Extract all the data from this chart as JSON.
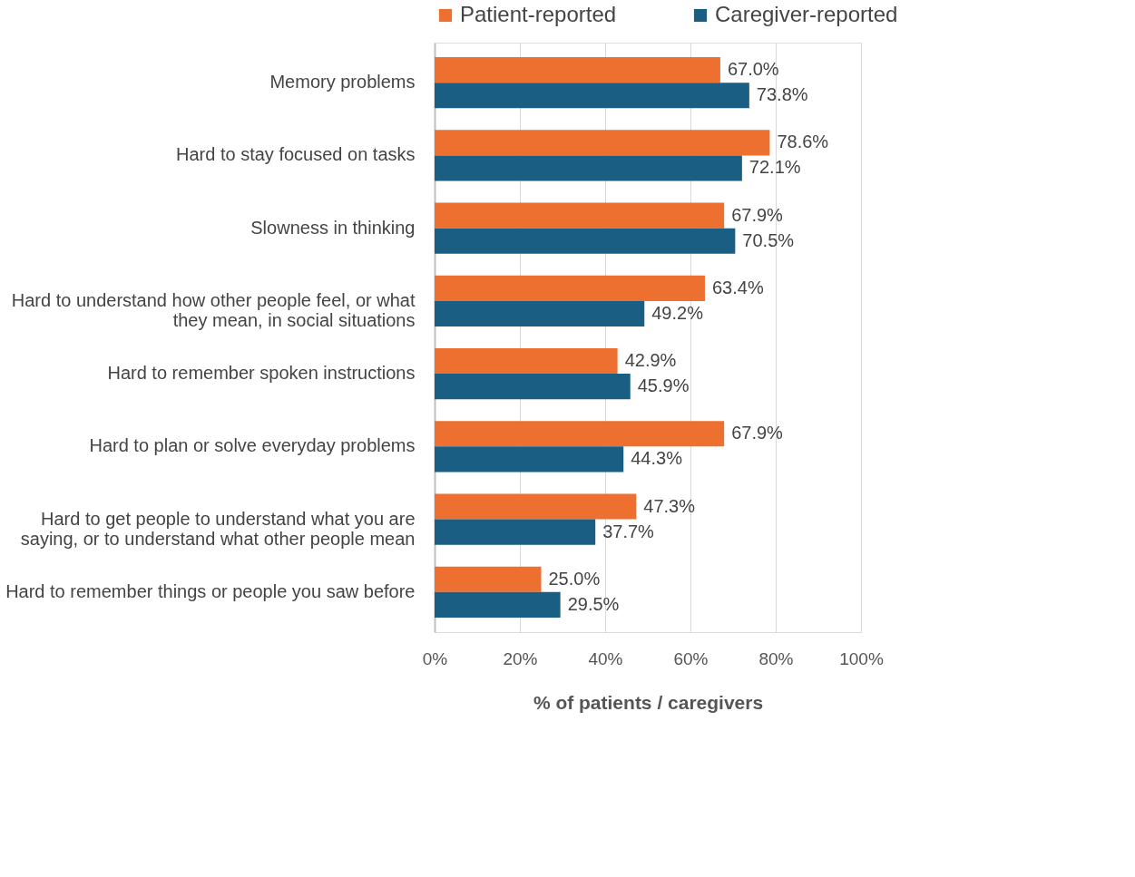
{
  "chart_data": {
    "type": "bar",
    "orientation": "horizontal",
    "xlabel": "% of patients / caregivers",
    "categories": [
      "Memory problems",
      "Hard to stay focused on tasks",
      "Slowness in thinking",
      "Hard to understand how other people feel, or what they mean, in social situations",
      "Hard to remember spoken instructions",
      "Hard to plan or solve everyday problems",
      "Hard to get people to understand what you are saying, or to understand what other people mean",
      "Hard to remember things or people you saw before"
    ],
    "series": [
      {
        "name": "Patient-reported",
        "color": "#ed7030",
        "values": [
          67.0,
          78.6,
          67.9,
          63.4,
          42.9,
          67.9,
          47.3,
          25.0
        ],
        "value_labels": [
          "67.0%",
          "78.6%",
          "67.9%",
          "63.4%",
          "42.9%",
          "67.9%",
          "47.3%",
          "25.0%"
        ]
      },
      {
        "name": "Caregiver-reported",
        "color": "#1b5e83",
        "values": [
          73.8,
          72.1,
          70.5,
          49.2,
          45.9,
          44.3,
          37.7,
          29.5
        ],
        "value_labels": [
          "73.8%",
          "72.1%",
          "70.5%",
          "49.2%",
          "45.9%",
          "44.3%",
          "37.7%",
          "29.5%"
        ]
      }
    ],
    "xlim": [
      0,
      100
    ],
    "xticks": [
      {
        "value": 0,
        "label": "0%"
      },
      {
        "value": 20,
        "label": "20%"
      },
      {
        "value": 40,
        "label": "40%"
      },
      {
        "value": 60,
        "label": "60%"
      },
      {
        "value": 80,
        "label": "80%"
      },
      {
        "value": 100,
        "label": "100%"
      }
    ],
    "grid": "x",
    "legend": "top"
  }
}
